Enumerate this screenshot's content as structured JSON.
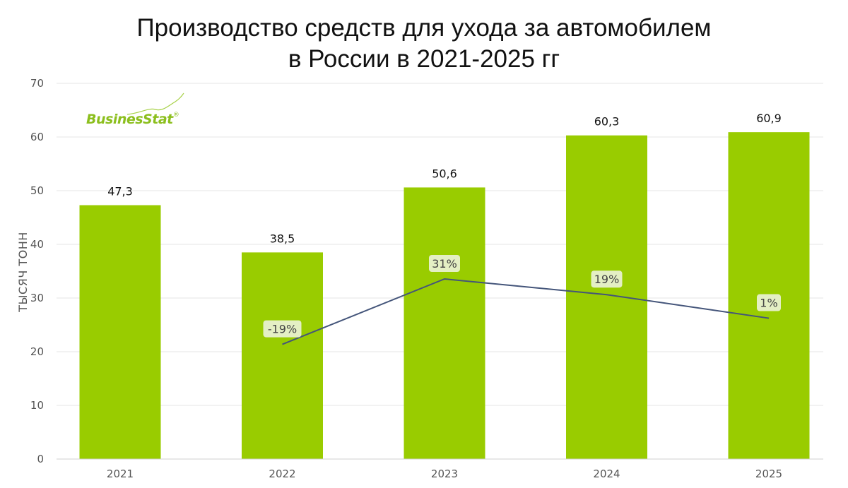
{
  "title_line1": "Производство средств для ухода за автомобилем",
  "title_line2": "в России в 2021-2025 гг",
  "logo": {
    "text": "BusinesStat",
    "mark": "®"
  },
  "colors": {
    "bar": "#99cc00",
    "line": "#44557a",
    "pct_box": "#e4efc4",
    "grid": "#e6e6e6"
  },
  "chart_data": {
    "type": "bar",
    "title": "Производство средств для ухода за автомобилем в России в 2021-2025 гг",
    "categories": [
      "2021",
      "2022",
      "2023",
      "2024",
      "2025"
    ],
    "series": [
      {
        "values": [
          47.3,
          38.5,
          50.6,
          60.3,
          60.9
        ],
        "labels": [
          "47,3",
          "38,5",
          "50,6",
          "60,3",
          "60,9"
        ]
      }
    ],
    "growth": {
      "type": "line",
      "categories": [
        "2022",
        "2023",
        "2024",
        "2025"
      ],
      "values": [
        -19,
        31,
        19,
        1
      ],
      "labels": [
        "-19%",
        "31%",
        "19%",
        "1%"
      ]
    },
    "ylabel": "ТЫСЯЧ ТОНН",
    "xlabel": "",
    "ylim": [
      0,
      70
    ],
    "yticks": [
      "0",
      "10",
      "20",
      "30",
      "40",
      "50",
      "60",
      "70"
    ],
    "grid": true,
    "legend": "none"
  }
}
